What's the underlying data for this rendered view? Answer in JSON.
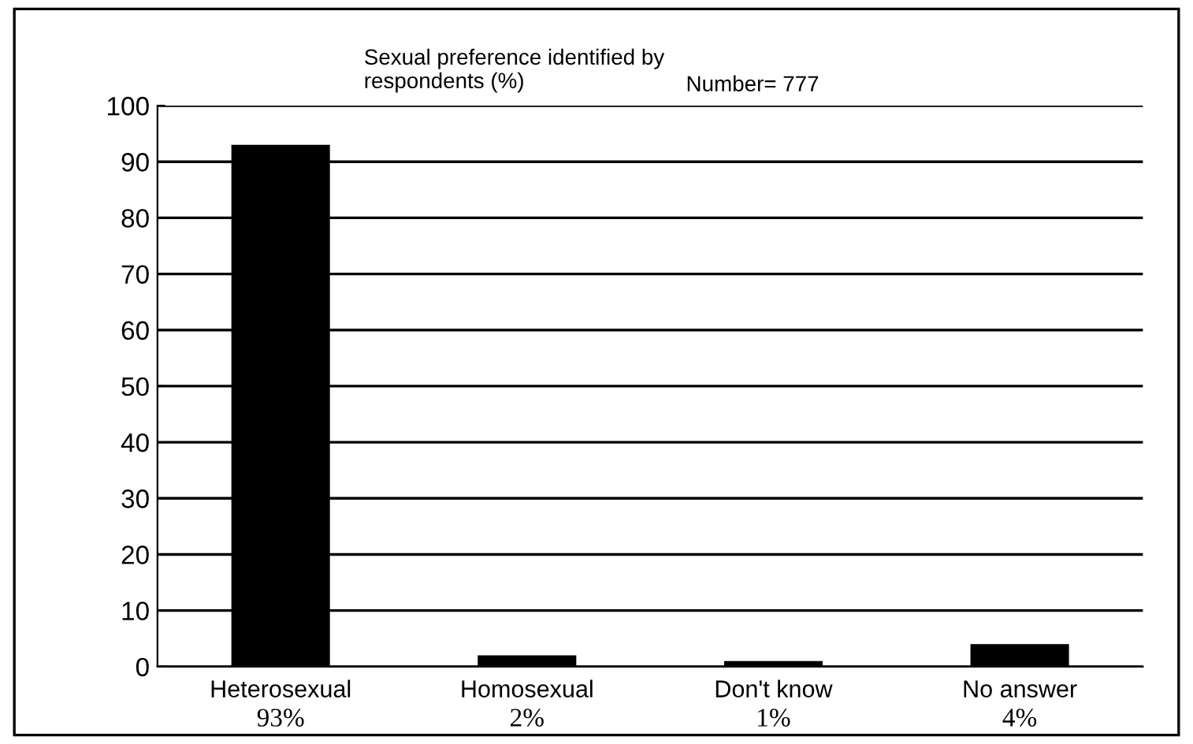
{
  "chart_data": {
    "type": "bar",
    "title": "Sexual preference identified by\nrespondents (%)",
    "annotations": [
      "Number= 777"
    ],
    "categories": [
      "Heterosexual",
      "Homosexual",
      "Don't know",
      "No answer"
    ],
    "values": [
      93,
      2,
      1,
      4
    ],
    "value_labels": [
      "93%",
      "2%",
      "1%",
      "4%"
    ],
    "color": "#000000",
    "ylim": [
      0,
      100
    ],
    "yticks": [
      0,
      10,
      20,
      30,
      40,
      50,
      60,
      70,
      80,
      90,
      100
    ],
    "grid": "y"
  }
}
